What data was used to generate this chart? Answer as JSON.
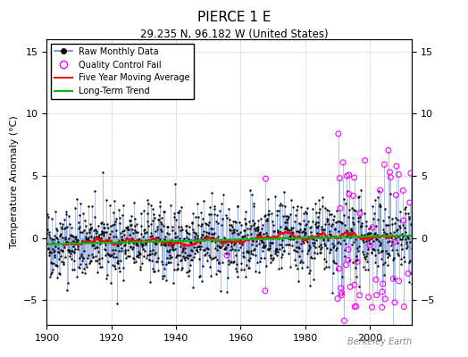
{
  "title": "PIERCE 1 E",
  "subtitle": "29.235 N, 96.182 W (United States)",
  "ylabel": "Temperature Anomaly (°C)",
  "credit": "Berkeley Earth",
  "xlim": [
    1900,
    2013
  ],
  "ylim": [
    -7,
    16
  ],
  "yticks": [
    -5,
    0,
    5,
    10,
    15
  ],
  "xticks": [
    1900,
    1920,
    1940,
    1960,
    1980,
    2000
  ],
  "bg_color": "#ffffff",
  "stem_color": "#6688cc",
  "dot_color": "#000000",
  "ma_color": "#ff0000",
  "trend_color": "#00bb00",
  "qc_color": "#ff00ff",
  "seed": 42,
  "n_months": 1356,
  "start_year": 1900,
  "noise_std": 1.5,
  "ma_window": 60,
  "qc_count": 60,
  "qc_start_year": 1990,
  "trend_intercept": -0.2,
  "trend_slope": 0.005
}
